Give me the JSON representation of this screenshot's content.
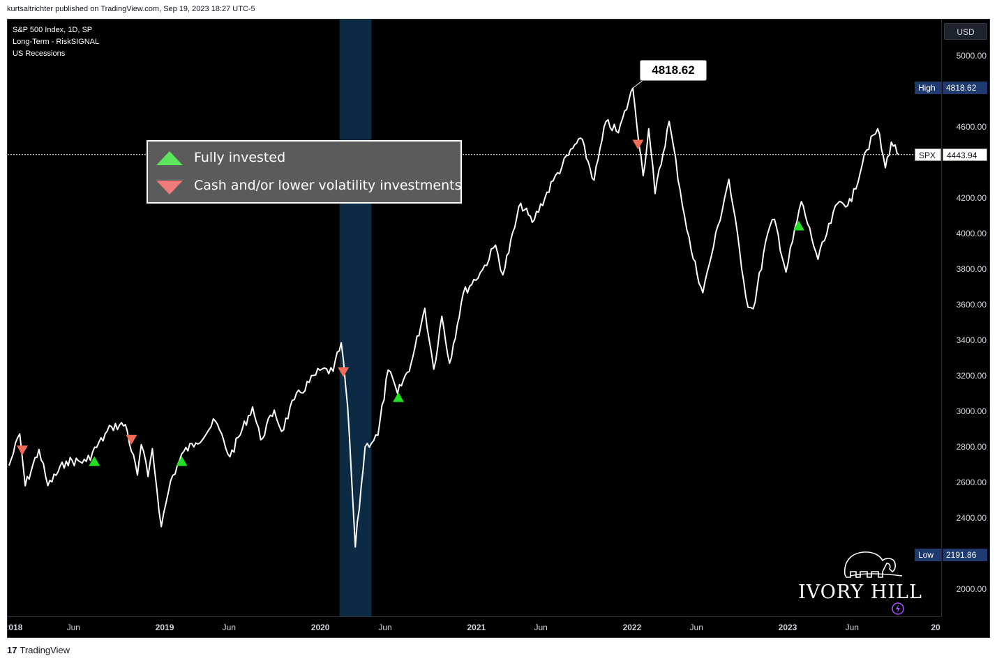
{
  "header": {
    "published": "kurtsaltrichter published on TradingView.com, Sep 19, 2023 18:27 UTC-5"
  },
  "legend": {
    "symbol": "S&P 500 Index, 1D, SP",
    "indicator": "Long-Term - RiskSIGNAL",
    "overlay": "US Recessions"
  },
  "currency": "USD",
  "signal_legend": {
    "buy_label": "Fully invested",
    "sell_label": "Cash and/or lower volatility investments",
    "buy_color": "#5ce65c",
    "sell_color": "#f07b7b"
  },
  "callout": "4818.62",
  "tags": {
    "high_label": "High",
    "high_value": "4818.62",
    "symbol_label": "SPX",
    "symbol_value": "4443.94",
    "low_label": "Low",
    "low_value": "2191.86"
  },
  "price_ticks": [
    "5000.00",
    "4600.00",
    "4200.00",
    "4000.00",
    "3800.00",
    "3600.00",
    "3400.00",
    "3200.00",
    "3000.00",
    "2800.00",
    "2600.00",
    "2400.00",
    "2000.00"
  ],
  "time_ticks": [
    {
      "label": "2018",
      "major": true
    },
    {
      "label": "Jun",
      "major": false
    },
    {
      "label": "2019",
      "major": true
    },
    {
      "label": "Jun",
      "major": false
    },
    {
      "label": "2020",
      "major": true
    },
    {
      "label": "Jun",
      "major": false
    },
    {
      "label": "2021",
      "major": true
    },
    {
      "label": "Jun",
      "major": false
    },
    {
      "label": "2022",
      "major": true
    },
    {
      "label": "Jun",
      "major": false
    },
    {
      "label": "2023",
      "major": true
    },
    {
      "label": "Jun",
      "major": false
    },
    {
      "label": "20",
      "major": true
    }
  ],
  "brand": {
    "logo_text": "IVORY HILL"
  },
  "footer": {
    "brand": "TradingView"
  },
  "colors": {
    "background": "#000000",
    "line": "#ffffff",
    "recession": "#0d2a45",
    "tag_bg": "#1e3a6e"
  },
  "chart_data": {
    "type": "line",
    "title": "S&P 500 Index, 1D, SP",
    "series": [
      {
        "name": "SPX",
        "x": [
          "2018-01-01",
          "2018-01-26",
          "2018-02-08",
          "2018-03-12",
          "2018-04-02",
          "2018-05-15",
          "2018-07-01",
          "2018-08-29",
          "2018-10-01",
          "2018-10-29",
          "2018-11-07",
          "2018-11-23",
          "2018-12-03",
          "2018-12-24",
          "2019-01-15",
          "2019-02-15",
          "2019-03-15",
          "2019-04-30",
          "2019-06-03",
          "2019-07-26",
          "2019-08-14",
          "2019-09-15",
          "2019-10-02",
          "2019-11-01",
          "2019-12-31",
          "2020-01-31",
          "2020-02-19",
          "2020-03-05",
          "2020-03-23",
          "2020-04-15",
          "2020-05-15",
          "2020-06-08",
          "2020-06-30",
          "2020-08-01",
          "2020-09-02",
          "2020-09-23",
          "2020-10-12",
          "2020-10-30",
          "2020-12-01",
          "2021-01-15",
          "2021-02-15",
          "2021-03-04",
          "2021-04-15",
          "2021-05-12",
          "2021-06-30",
          "2021-08-15",
          "2021-09-02",
          "2021-10-04",
          "2021-11-01",
          "2021-11-30",
          "2022-01-03",
          "2022-01-27",
          "2022-02-09",
          "2022-02-24",
          "2022-03-29",
          "2022-05-04",
          "2022-05-20",
          "2022-06-16",
          "2022-07-01",
          "2022-08-16",
          "2022-09-30",
          "2022-10-12",
          "2022-11-15",
          "2022-12-01",
          "2022-12-28",
          "2023-02-02",
          "2023-03-13",
          "2023-04-28",
          "2023-05-31",
          "2023-06-30",
          "2023-07-31",
          "2023-08-18",
          "2023-09-01",
          "2023-09-19"
        ],
        "y": [
          2695,
          2873,
          2581,
          2786,
          2582,
          2720,
          2718,
          2914,
          2925,
          2641,
          2813,
          2633,
          2790,
          2351,
          2610,
          2775,
          2822,
          2945,
          2744,
          3025,
          2840,
          3007,
          2887,
          3066,
          3231,
          3225,
          3386,
          3025,
          2237,
          2800,
          2865,
          3232,
          3100,
          3270,
          3580,
          3237,
          3535,
          3270,
          3662,
          3795,
          3935,
          3768,
          4170,
          4063,
          4297,
          4480,
          4537,
          4300,
          4630,
          4567,
          4818,
          4326,
          4590,
          4225,
          4631,
          4100,
          3901,
          3667,
          3825,
          4305,
          3585,
          3577,
          4000,
          4080,
          3783,
          4180,
          3855,
          4169,
          4180,
          4450,
          4590,
          4370,
          4515,
          4443
        ]
      }
    ],
    "signals": [
      {
        "type": "sell",
        "x": "2018-02-01",
        "y": 2780
      },
      {
        "type": "buy",
        "x": "2018-07-20",
        "y": 2720
      },
      {
        "type": "sell",
        "x": "2018-10-15",
        "y": 2840
      },
      {
        "type": "buy",
        "x": "2019-02-10",
        "y": 2720
      },
      {
        "type": "sell",
        "x": "2020-02-24",
        "y": 3220
      },
      {
        "type": "buy",
        "x": "2020-07-02",
        "y": 3080
      },
      {
        "type": "sell",
        "x": "2022-01-15",
        "y": 4500
      },
      {
        "type": "buy",
        "x": "2023-01-27",
        "y": 4045
      }
    ],
    "recession": [
      "2020-02-15",
      "2020-04-30"
    ],
    "high": 4818.62,
    "low": 2191.86,
    "last": 4443.94,
    "ylim": [
      1850,
      5100
    ],
    "xlim": [
      "2018-01-01",
      "2023-12-31"
    ]
  }
}
